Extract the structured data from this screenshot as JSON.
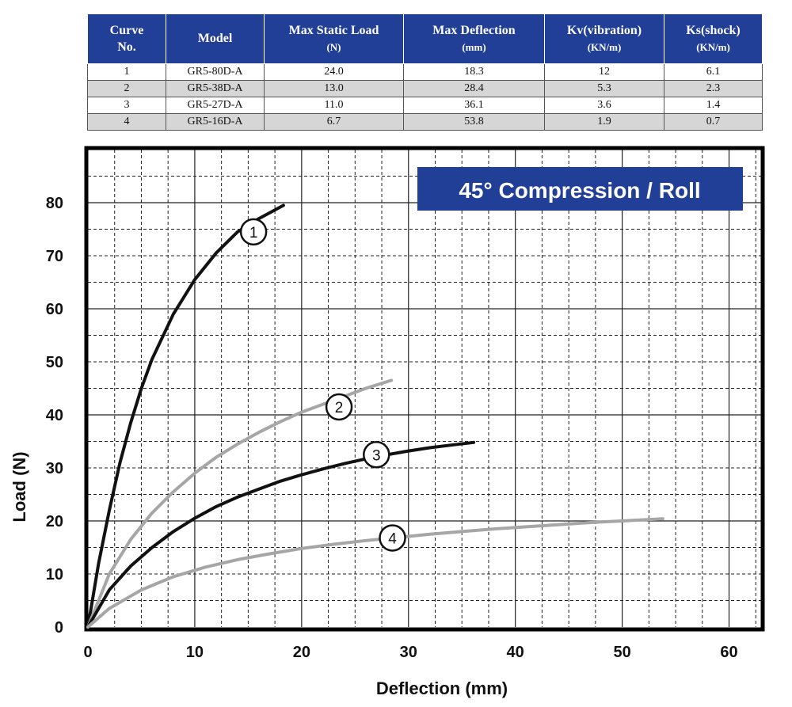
{
  "table": {
    "headers": [
      {
        "line1": "Curve",
        "line2": "No."
      },
      {
        "line1": "Model",
        "line2": ""
      },
      {
        "line1": "Max Static Load",
        "line2": "(N)"
      },
      {
        "line1": "Max Deflection",
        "line2": "(mm)"
      },
      {
        "line1": "Kv(vibration)",
        "line2": "(KN/m)"
      },
      {
        "line1": "Ks(shock)",
        "line2": "(KN/m)"
      }
    ],
    "rows": [
      [
        "1",
        "GR5-80D-A",
        "24.0",
        "18.3",
        "12",
        "6.1"
      ],
      [
        "2",
        "GR5-38D-A",
        "13.0",
        "28.4",
        "5.3",
        "2.3"
      ],
      [
        "3",
        "GR5-27D-A",
        "11.0",
        "36.1",
        "3.6",
        "1.4"
      ],
      [
        "4",
        "GR5-16D-A",
        "6.7",
        "53.8",
        "1.9",
        "0.7"
      ]
    ]
  },
  "chart_data": {
    "type": "line",
    "title": "45° Compression / Roll",
    "xlabel": "Deflection (mm)",
    "ylabel": "Load (N)",
    "xlim": [
      0,
      63
    ],
    "ylim": [
      0,
      90
    ],
    "xticks": [
      0,
      10,
      20,
      30,
      40,
      50,
      60
    ],
    "yticks": [
      0,
      10,
      20,
      30,
      40,
      50,
      60,
      70,
      80
    ],
    "grid": true,
    "title_box_color": "#213f97",
    "series": [
      {
        "name": "1",
        "color": "#111111",
        "x": [
          0,
          1,
          2,
          3,
          4,
          5,
          6,
          8,
          10,
          12,
          14,
          16,
          18.3
        ],
        "y": [
          0,
          12,
          22,
          31,
          38.5,
          45,
          50.5,
          59,
          65.5,
          70.5,
          74.5,
          77,
          79.5
        ]
      },
      {
        "name": "2",
        "color": "#a6a6a6",
        "x": [
          0,
          2,
          4,
          6,
          8,
          10,
          12,
          14,
          16,
          18,
          20,
          22,
          24,
          26,
          28.4
        ],
        "y": [
          0,
          10,
          16.5,
          21.5,
          25.5,
          29,
          32,
          34.5,
          36.7,
          38.7,
          40.5,
          42,
          43.5,
          45,
          46.5
        ]
      },
      {
        "name": "3",
        "color": "#111111",
        "x": [
          0,
          2,
          4,
          6,
          8,
          10,
          12,
          14,
          16,
          18,
          20,
          22,
          24,
          26,
          28,
          30,
          32,
          34,
          36.1
        ],
        "y": [
          0,
          7,
          11.5,
          15,
          18,
          20.5,
          22.7,
          24.5,
          26,
          27.5,
          28.7,
          29.8,
          30.8,
          31.7,
          32.5,
          33.2,
          33.8,
          34.3,
          34.8
        ]
      },
      {
        "name": "4",
        "color": "#a6a6a6",
        "x": [
          0,
          2,
          5,
          8,
          11,
          14,
          17,
          20,
          23,
          26,
          29,
          32,
          35,
          38,
          41,
          44,
          47,
          50,
          53.8
        ],
        "y": [
          0,
          3.5,
          7,
          9.5,
          11.3,
          12.7,
          13.8,
          14.8,
          15.6,
          16.3,
          16.9,
          17.5,
          18,
          18.5,
          18.9,
          19.3,
          19.7,
          20,
          20.4
        ]
      }
    ],
    "curve_labels": [
      {
        "text": "1",
        "x": 15.5,
        "y": 74.5
      },
      {
        "text": "2",
        "x": 23.5,
        "y": 41.5
      },
      {
        "text": "3",
        "x": 27,
        "y": 32.5
      },
      {
        "text": "4",
        "x": 28.5,
        "y": 16.8
      }
    ]
  }
}
